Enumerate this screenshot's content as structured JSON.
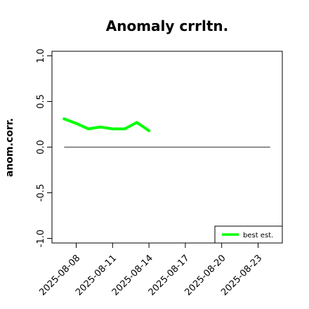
{
  "chart_data": {
    "type": "line",
    "title": "Anomaly crrltn.",
    "xlabel": "",
    "ylabel": "anom.corr.",
    "ylim": [
      -1.05,
      1.05
    ],
    "y_ticks": [
      "-1.0",
      "-0.5",
      "0.0",
      "0.5",
      "1.0"
    ],
    "x_ticks": [
      "2025-08-08",
      "2025-08-11",
      "2025-08-14",
      "2025-08-17",
      "2025-08-20",
      "2025-08-23"
    ],
    "x_tick_highlight": "2025-08-14",
    "x_tick_highlight_color": "#228b22",
    "xlim": [
      "2025-08-06",
      "2025-08-25"
    ],
    "reference_line": {
      "y": 0,
      "x_from": "2025-08-07",
      "x_to": "2025-08-24",
      "color": "#555555"
    },
    "series": [
      {
        "name": "best est.",
        "color": "#00ff00",
        "x": [
          "2025-08-07",
          "2025-08-08",
          "2025-08-09",
          "2025-08-10",
          "2025-08-11",
          "2025-08-12",
          "2025-08-13",
          "2025-08-14"
        ],
        "values": [
          0.31,
          0.26,
          0.2,
          0.22,
          0.2,
          0.2,
          0.27,
          0.18
        ]
      }
    ],
    "legend_position": "bottom-right",
    "grid": false
  }
}
